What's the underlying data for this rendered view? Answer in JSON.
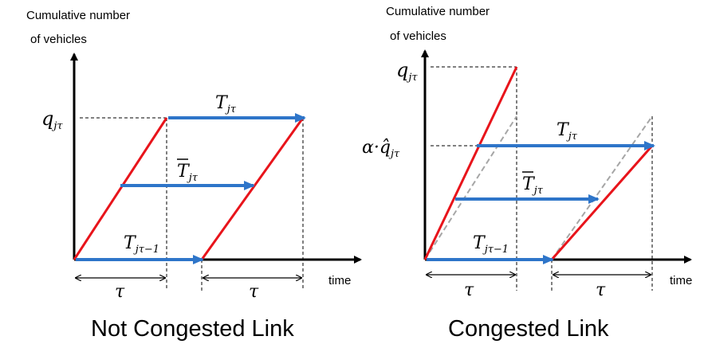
{
  "colors": {
    "red_line": "#e8141b",
    "blue_arrow": "#2e75c9",
    "gray_dashed": "#a6a6a6",
    "axis": "#000000"
  },
  "left": {
    "ylabel_line1": "Cumulative number",
    "ylabel_line2": "of vehicles",
    "time_label": "time",
    "caption": "Not Congested Link",
    "q_main": "q",
    "q_sub": "jτ",
    "T_top_main": "T",
    "T_top_sub": "jτ",
    "Tbar_main": "T",
    "Tbar_sub": "jτ",
    "T_prev_main": "T",
    "T_prev_sub": "jτ−1",
    "tau_1": "τ",
    "tau_2": "τ"
  },
  "right": {
    "ylabel_line1": "Cumulative number",
    "ylabel_line2": "of vehicles",
    "time_label": "time",
    "caption": "Congested Link",
    "q_main": "q",
    "q_sub": "jτ",
    "alpha_main": "α·q̂",
    "alpha_sub": "jτ",
    "T_top_main": "T",
    "T_top_sub": "jτ",
    "Tbar_main": "T",
    "Tbar_sub": "jτ",
    "T_prev_main": "T",
    "T_prev_sub": "jτ−1",
    "tau_1": "τ",
    "tau_2": "τ"
  }
}
